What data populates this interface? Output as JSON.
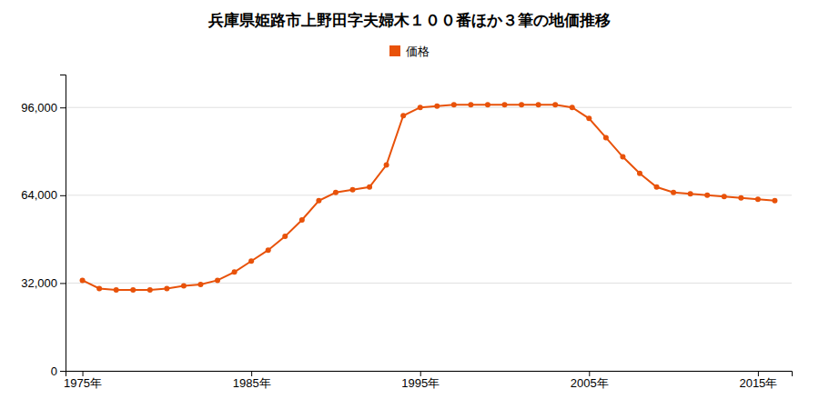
{
  "chart_data": {
    "type": "line",
    "title": "兵庫県姫路市上野田字夫婦木１００番ほか３筆の地価推移",
    "x": [
      1975,
      1976,
      1977,
      1978,
      1979,
      1980,
      1981,
      1982,
      1983,
      1984,
      1985,
      1986,
      1987,
      1988,
      1989,
      1990,
      1991,
      1992,
      1993,
      1994,
      1995,
      1996,
      1997,
      1998,
      1999,
      2000,
      2001,
      2002,
      2003,
      2004,
      2005,
      2006,
      2007,
      2008,
      2009,
      2010,
      2011,
      2012,
      2013,
      2014,
      2015,
      2016
    ],
    "series": [
      {
        "name": "価格",
        "color": "#e8520a",
        "marker": "circle",
        "values": [
          33000,
          30000,
          29500,
          29500,
          29500,
          30000,
          31000,
          31500,
          33000,
          36000,
          40000,
          44000,
          49000,
          55000,
          62000,
          65000,
          66000,
          67000,
          75000,
          93000,
          96000,
          96500,
          97000,
          97000,
          97000,
          97000,
          97000,
          97000,
          97000,
          96000,
          92000,
          85000,
          78000,
          72000,
          67000,
          65000,
          64500,
          64000,
          63500,
          63000,
          62500,
          62000
        ]
      }
    ],
    "xlim": [
      1974,
      2017
    ],
    "xticks": [
      {
        "value": 1975,
        "label": "1975年"
      },
      {
        "value": 1985,
        "label": "1985年"
      },
      {
        "value": 1995,
        "label": "1995年"
      },
      {
        "value": 2005,
        "label": "2005年"
      },
      {
        "value": 2015,
        "label": "2015年"
      }
    ],
    "ylim": [
      0,
      108000
    ],
    "yticks": [
      0,
      {
        "value": 32000,
        "label": "32,000"
      },
      {
        "value": 64000,
        "label": "64,000"
      },
      {
        "value": 96000,
        "label": "96,000"
      }
    ],
    "grid": true,
    "legend": "top"
  }
}
